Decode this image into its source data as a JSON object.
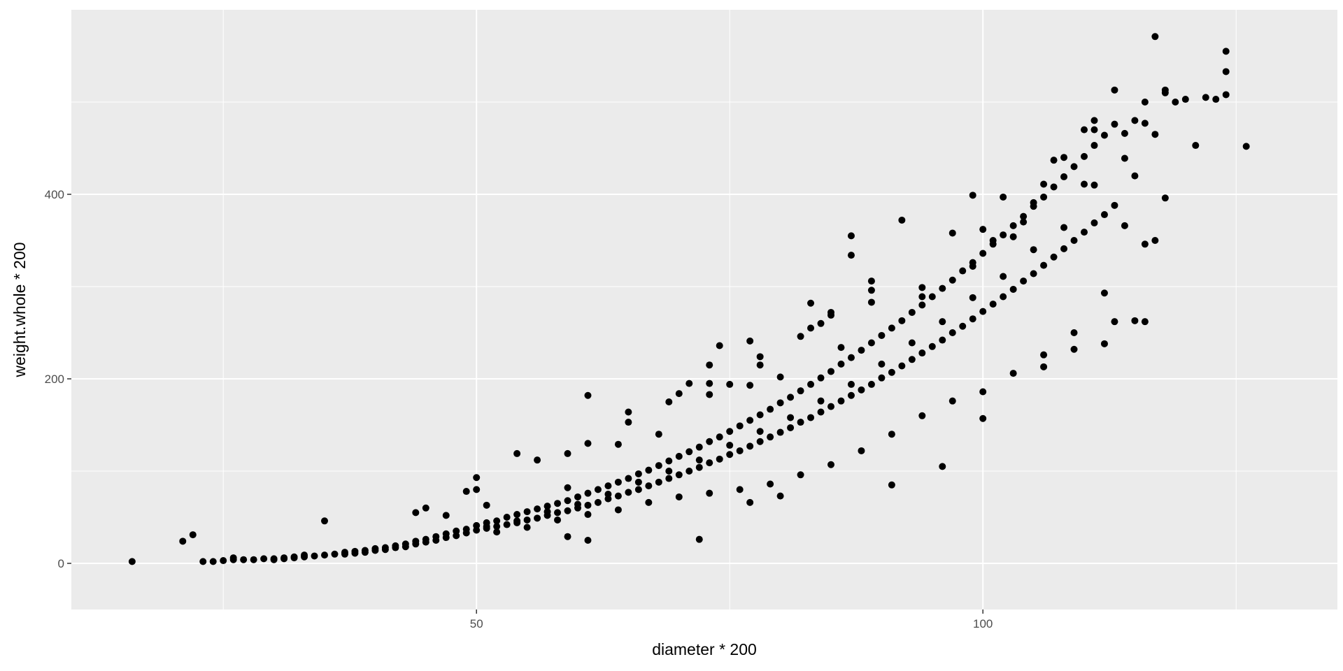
{
  "chart_data": {
    "type": "scatter",
    "title": "",
    "xlabel": "diameter * 200",
    "ylabel": "weight.whole * 200",
    "xlim": [
      10,
      135
    ],
    "ylim": [
      -50,
      600
    ],
    "x_ticks": [
      50,
      100
    ],
    "y_ticks": [
      0,
      200,
      400
    ],
    "x_minor_ticks": [
      25,
      75,
      125
    ],
    "y_minor_ticks": [
      100,
      300,
      500
    ],
    "grid": true,
    "legend": "none",
    "colors": {
      "panel": "#ebebeb",
      "grid": "#ffffff",
      "point": "#000000",
      "tick_label": "#4d4d4d",
      "axis_title": "#000000"
    },
    "points": [
      [
        16,
        2
      ],
      [
        23,
        2
      ],
      [
        24,
        2
      ],
      [
        25,
        3
      ],
      [
        26,
        4
      ],
      [
        26,
        6
      ],
      [
        27,
        4
      ],
      [
        28,
        4
      ],
      [
        29,
        5
      ],
      [
        30,
        4
      ],
      [
        30,
        5
      ],
      [
        31,
        5
      ],
      [
        31,
        6
      ],
      [
        32,
        6
      ],
      [
        32,
        7
      ],
      [
        33,
        7
      ],
      [
        33,
        9
      ],
      [
        34,
        8
      ],
      [
        35,
        9
      ],
      [
        36,
        10
      ],
      [
        37,
        10
      ],
      [
        37,
        12
      ],
      [
        38,
        11
      ],
      [
        38,
        13
      ],
      [
        39,
        12
      ],
      [
        39,
        14
      ],
      [
        40,
        14
      ],
      [
        40,
        16
      ],
      [
        41,
        15
      ],
      [
        41,
        17
      ],
      [
        42,
        17
      ],
      [
        42,
        19
      ],
      [
        43,
        18
      ],
      [
        43,
        21
      ],
      [
        44,
        21
      ],
      [
        44,
        24
      ],
      [
        45,
        23
      ],
      [
        45,
        26
      ],
      [
        46,
        25
      ],
      [
        46,
        29
      ],
      [
        47,
        28
      ],
      [
        47,
        32
      ],
      [
        48,
        30
      ],
      [
        48,
        35
      ],
      [
        49,
        33
      ],
      [
        49,
        37
      ],
      [
        50,
        36
      ],
      [
        50,
        41
      ],
      [
        51,
        38
      ],
      [
        51,
        44
      ],
      [
        52,
        40
      ],
      [
        52,
        46
      ],
      [
        53,
        42
      ],
      [
        53,
        50
      ],
      [
        54,
        44
      ],
      [
        54,
        53
      ],
      [
        55,
        47
      ],
      [
        55,
        56
      ],
      [
        56,
        49
      ],
      [
        56,
        59
      ],
      [
        57,
        52
      ],
      [
        57,
        62
      ],
      [
        58,
        55
      ],
      [
        58,
        65
      ],
      [
        59,
        57
      ],
      [
        59,
        68
      ],
      [
        60,
        60
      ],
      [
        60,
        72
      ],
      [
        61,
        63
      ],
      [
        61,
        76
      ],
      [
        62,
        66
      ],
      [
        62,
        80
      ],
      [
        63,
        70
      ],
      [
        63,
        84
      ],
      [
        64,
        73
      ],
      [
        64,
        88
      ],
      [
        65,
        77
      ],
      [
        65,
        92
      ],
      [
        66,
        80
      ],
      [
        66,
        97
      ],
      [
        67,
        84
      ],
      [
        67,
        101
      ],
      [
        68,
        88
      ],
      [
        68,
        106
      ],
      [
        69,
        92
      ],
      [
        69,
        111
      ],
      [
        70,
        96
      ],
      [
        70,
        116
      ],
      [
        71,
        100
      ],
      [
        71,
        121
      ],
      [
        72,
        104
      ],
      [
        72,
        126
      ],
      [
        73,
        109
      ],
      [
        73,
        132
      ],
      [
        74,
        113
      ],
      [
        74,
        137
      ],
      [
        75,
        118
      ],
      [
        75,
        143
      ],
      [
        76,
        122
      ],
      [
        76,
        149
      ],
      [
        77,
        127
      ],
      [
        77,
        155
      ],
      [
        78,
        132
      ],
      [
        78,
        161
      ],
      [
        79,
        137
      ],
      [
        79,
        167
      ],
      [
        80,
        142
      ],
      [
        80,
        174
      ],
      [
        81,
        147
      ],
      [
        81,
        180
      ],
      [
        82,
        153
      ],
      [
        82,
        187
      ],
      [
        83,
        158
      ],
      [
        83,
        194
      ],
      [
        84,
        164
      ],
      [
        84,
        201
      ],
      [
        85,
        170
      ],
      [
        85,
        208
      ],
      [
        86,
        176
      ],
      [
        86,
        216
      ],
      [
        87,
        182
      ],
      [
        87,
        223
      ],
      [
        88,
        188
      ],
      [
        88,
        231
      ],
      [
        89,
        194
      ],
      [
        89,
        239
      ],
      [
        90,
        201
      ],
      [
        90,
        247
      ],
      [
        91,
        207
      ],
      [
        91,
        255
      ],
      [
        92,
        214
      ],
      [
        92,
        263
      ],
      [
        93,
        221
      ],
      [
        93,
        272
      ],
      [
        94,
        228
      ],
      [
        94,
        280
      ],
      [
        95,
        235
      ],
      [
        95,
        289
      ],
      [
        96,
        242
      ],
      [
        96,
        298
      ],
      [
        97,
        250
      ],
      [
        97,
        307
      ],
      [
        98,
        257
      ],
      [
        98,
        317
      ],
      [
        99,
        265
      ],
      [
        99,
        326
      ],
      [
        100,
        273
      ],
      [
        100,
        336
      ],
      [
        101,
        281
      ],
      [
        101,
        346
      ],
      [
        102,
        289
      ],
      [
        102,
        356
      ],
      [
        103,
        297
      ],
      [
        103,
        366
      ],
      [
        104,
        306
      ],
      [
        104,
        376
      ],
      [
        105,
        314
      ],
      [
        105,
        387
      ],
      [
        106,
        323
      ],
      [
        106,
        397
      ],
      [
        107,
        332
      ],
      [
        107,
        408
      ],
      [
        108,
        341
      ],
      [
        108,
        419
      ],
      [
        109,
        350
      ],
      [
        109,
        430
      ],
      [
        110,
        359
      ],
      [
        110,
        441
      ],
      [
        111,
        369
      ],
      [
        111,
        453
      ],
      [
        112,
        378
      ],
      [
        112,
        464
      ],
      [
        113,
        388
      ],
      [
        113,
        476
      ],
      [
        22,
        31
      ],
      [
        21,
        24
      ],
      [
        35,
        46
      ],
      [
        44,
        55
      ],
      [
        45,
        60
      ],
      [
        47,
        52
      ],
      [
        49,
        78
      ],
      [
        50,
        93
      ],
      [
        50,
        80
      ],
      [
        51,
        63
      ],
      [
        54,
        119
      ],
      [
        56,
        112
      ],
      [
        59,
        119
      ],
      [
        59,
        82
      ],
      [
        59,
        29
      ],
      [
        61,
        130
      ],
      [
        61,
        182
      ],
      [
        61,
        25
      ],
      [
        64,
        129
      ],
      [
        65,
        164
      ],
      [
        65,
        153
      ],
      [
        68,
        140
      ],
      [
        69,
        175
      ],
      [
        70,
        184
      ],
      [
        71,
        195
      ],
      [
        73,
        215
      ],
      [
        73,
        195
      ],
      [
        73,
        183
      ],
      [
        74,
        236
      ],
      [
        75,
        194
      ],
      [
        77,
        241
      ],
      [
        77,
        193
      ],
      [
        72,
        26
      ],
      [
        77,
        66
      ],
      [
        78,
        224
      ],
      [
        78,
        215
      ],
      [
        80,
        202
      ],
      [
        80,
        73
      ],
      [
        82,
        246
      ],
      [
        83,
        255
      ],
      [
        83,
        282
      ],
      [
        84,
        260
      ],
      [
        85,
        272
      ],
      [
        85,
        269
      ],
      [
        86,
        234
      ],
      [
        87,
        355
      ],
      [
        87,
        334
      ],
      [
        89,
        306
      ],
      [
        89,
        296
      ],
      [
        89,
        283
      ],
      [
        91,
        85
      ],
      [
        92,
        372
      ],
      [
        94,
        299
      ],
      [
        94,
        289
      ],
      [
        96,
        105
      ],
      [
        97,
        358
      ],
      [
        99,
        399
      ],
      [
        99,
        322
      ],
      [
        100,
        362
      ],
      [
        100,
        157
      ],
      [
        101,
        350
      ],
      [
        102,
        397
      ],
      [
        103,
        354
      ],
      [
        104,
        370
      ],
      [
        105,
        391
      ],
      [
        106,
        411
      ],
      [
        106,
        213
      ],
      [
        107,
        437
      ],
      [
        108,
        440
      ],
      [
        109,
        232
      ],
      [
        110,
        470
      ],
      [
        110,
        411
      ],
      [
        111,
        480
      ],
      [
        111,
        470
      ],
      [
        112,
        238
      ],
      [
        113,
        513
      ],
      [
        113,
        262
      ],
      [
        114,
        439
      ],
      [
        114,
        466
      ],
      [
        115,
        480
      ],
      [
        115,
        263
      ],
      [
        116,
        500
      ],
      [
        116,
        477
      ],
      [
        116,
        262
      ],
      [
        117,
        465
      ],
      [
        117,
        350
      ],
      [
        118,
        513
      ],
      [
        118,
        510
      ],
      [
        119,
        500
      ],
      [
        120,
        503
      ],
      [
        121,
        453
      ],
      [
        122,
        505
      ],
      [
        123,
        503
      ],
      [
        124,
        555
      ],
      [
        124,
        533
      ],
      [
        124,
        508
      ],
      [
        117,
        571
      ],
      [
        126,
        452
      ],
      [
        116,
        346
      ],
      [
        118,
        396
      ],
      [
        112,
        293
      ],
      [
        109,
        250
      ],
      [
        106,
        226
      ],
      [
        103,
        206
      ],
      [
        100,
        186
      ],
      [
        97,
        176
      ],
      [
        94,
        160
      ],
      [
        91,
        140
      ],
      [
        88,
        122
      ],
      [
        85,
        107
      ],
      [
        82,
        96
      ],
      [
        79,
        86
      ],
      [
        76,
        80
      ],
      [
        73,
        76
      ],
      [
        70,
        72
      ],
      [
        67,
        66
      ],
      [
        64,
        58
      ],
      [
        61,
        53
      ],
      [
        58,
        47
      ],
      [
        55,
        39
      ],
      [
        52,
        34
      ],
      [
        114,
        366
      ],
      [
        115,
        420
      ],
      [
        111,
        410
      ],
      [
        108,
        364
      ],
      [
        105,
        340
      ],
      [
        102,
        311
      ],
      [
        99,
        288
      ],
      [
        96,
        262
      ],
      [
        93,
        239
      ],
      [
        90,
        216
      ],
      [
        87,
        194
      ],
      [
        84,
        176
      ],
      [
        81,
        158
      ],
      [
        78,
        143
      ],
      [
        75,
        128
      ],
      [
        72,
        112
      ],
      [
        69,
        100
      ],
      [
        66,
        88
      ],
      [
        63,
        75
      ],
      [
        60,
        64
      ],
      [
        57,
        56
      ],
      [
        54,
        46
      ],
      [
        51,
        40
      ]
    ]
  }
}
